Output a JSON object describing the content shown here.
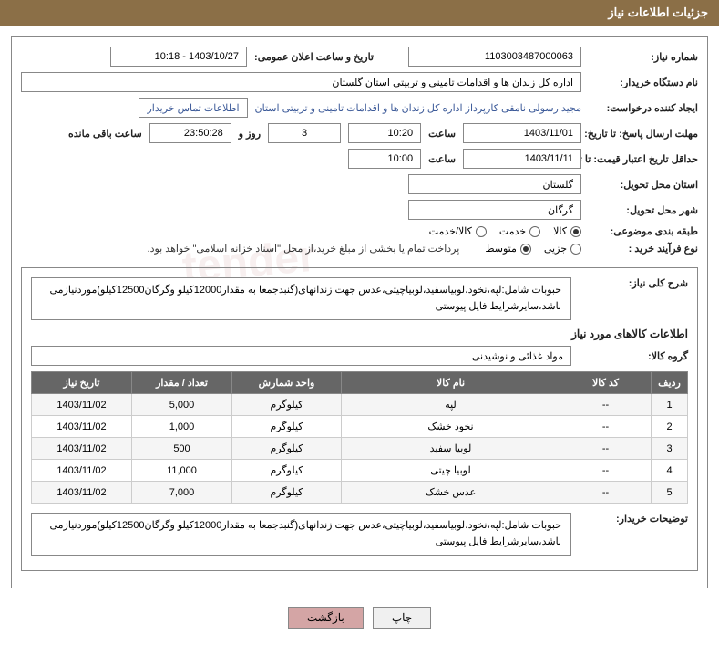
{
  "header": {
    "title": "جزئیات اطلاعات نیاز"
  },
  "fields": {
    "need_number_label": "شماره نیاز:",
    "need_number": "1103003487000063",
    "announce_label": "تاریخ و ساعت اعلان عمومی:",
    "announce_value": "1403/10/27 - 10:18",
    "buyer_label": "نام دستگاه خریدار:",
    "buyer_value": "اداره کل زندان ها و اقدامات تامینی و تربیتی استان گلستان",
    "requester_label": "ایجاد کننده درخواست:",
    "requester_value": "مجید رسولی نامقی کارپرداز اداره کل زندان ها و اقدامات تامینی و تربیتی استان",
    "contact_link": "اطلاعات تماس خریدار",
    "deadline_label": "مهلت ارسال پاسخ: تا تاریخ:",
    "deadline_date": "1403/11/01",
    "time_label": "ساعت",
    "deadline_time": "10:20",
    "days_count": "3",
    "days_label": "روز و",
    "countdown": "23:50:28",
    "remaining_label": "ساعت باقی مانده",
    "validity_label": "حداقل تاریخ اعتبار قیمت: تا تاریخ:",
    "validity_date": "1403/11/11",
    "validity_time": "10:00",
    "province_label": "استان محل تحویل:",
    "province_value": "گلستان",
    "city_label": "شهر محل تحویل:",
    "city_value": "گرگان",
    "category_label": "طبقه بندی موضوعی:",
    "cat_opt1": "کالا",
    "cat_opt2": "خدمت",
    "cat_opt3": "کالا/خدمت",
    "process_label": "نوع فرآیند خرید :",
    "proc_opt1": "جزیی",
    "proc_opt2": "متوسط",
    "process_note": "پرداخت تمام یا بخشی از مبلغ خرید،از محل \"اسناد خزانه اسلامی\" خواهد بود.",
    "summary_label": "شرح کلی نیاز:",
    "summary_value": "حبوبات شامل:لپه،نخود،لوبیاسفید،لوبیاچیتی،عدس جهت زندانهای(گنبدجمعا به مقدار12000کیلو وگرگان12500کیلو)موردنیازمی باشد،سایرشرایط فایل پیوستی",
    "items_title": "اطلاعات کالاهای مورد نیاز",
    "group_label": "گروه کالا:",
    "group_value": "مواد غذائی و نوشیدنی",
    "buyer_notes_label": "توضیحات خریدار:",
    "buyer_notes_value": "حبوبات شامل:لپه،نخود،لوبیاسفید،لوبیاچیتی،عدس جهت زندانهای(گنبدجمعا به مقدار12000کیلو وگرگان12500کیلو)موردنیازمی باشد،سایرشرایط فایل پیوستی"
  },
  "table": {
    "headers": {
      "idx": "ردیف",
      "code": "کد کالا",
      "name": "نام کالا",
      "unit": "واحد شمارش",
      "qty": "تعداد / مقدار",
      "date": "تاریخ نیاز"
    },
    "rows": [
      {
        "idx": "1",
        "code": "--",
        "name": "لپه",
        "unit": "کیلوگرم",
        "qty": "5,000",
        "date": "1403/11/02"
      },
      {
        "idx": "2",
        "code": "--",
        "name": "نخود خشک",
        "unit": "کیلوگرم",
        "qty": "1,000",
        "date": "1403/11/02"
      },
      {
        "idx": "3",
        "code": "--",
        "name": "لوبیا سفید",
        "unit": "کیلوگرم",
        "qty": "500",
        "date": "1403/11/02"
      },
      {
        "idx": "4",
        "code": "--",
        "name": "لوبیا چیتی",
        "unit": "کیلوگرم",
        "qty": "11,000",
        "date": "1403/11/02"
      },
      {
        "idx": "5",
        "code": "--",
        "name": "عدس خشک",
        "unit": "کیلوگرم",
        "qty": "7,000",
        "date": "1403/11/02"
      }
    ]
  },
  "buttons": {
    "print": "چاپ",
    "back": "بازگشت"
  },
  "colors": {
    "header_bg": "#8b6f47",
    "th_bg": "#666666",
    "link": "#3b5998",
    "btn_back": "#d4a5a5"
  }
}
